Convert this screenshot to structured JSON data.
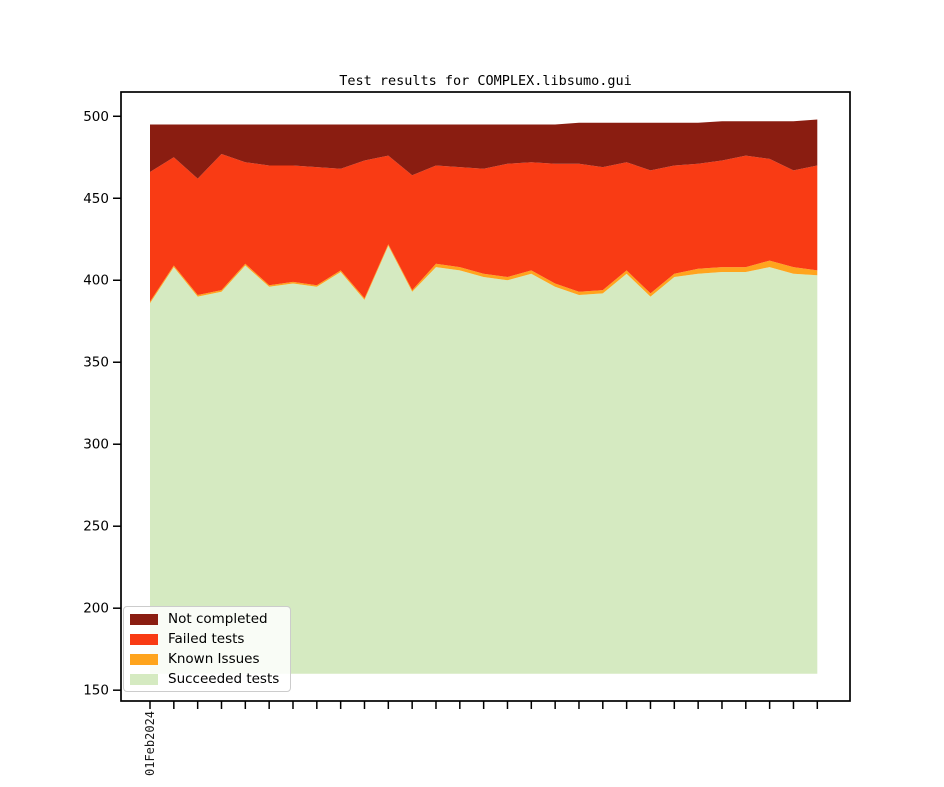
{
  "figure": {
    "title": "Test results for COMPLEX.libsumo.gui"
  },
  "chart_data": {
    "type": "area",
    "stacked": true,
    "title": "Test results for COMPLEX.libsumo.gui",
    "xlabel": "",
    "ylabel": "",
    "grid": false,
    "legend_position": "lower left",
    "x_tick_count": 29,
    "x_first_tick_label": "01Feb2024",
    "x_tick_labels": [
      "01Feb2024",
      "",
      "",
      "",
      "",
      "",
      "",
      "",
      "",
      "",
      "",
      "",
      "",
      "",
      "",
      "",
      "",
      "",
      "",
      "",
      "",
      "",
      "",
      "",
      "",
      "",
      "",
      "",
      ""
    ],
    "y_ticks": [
      150,
      200,
      250,
      300,
      350,
      400,
      450,
      500
    ],
    "ylim": [
      143.4,
      514.8
    ],
    "visible_stack_baseline": 160,
    "series": [
      {
        "name": "Succeeded tests",
        "color": "#d5eac1",
        "absolute": true,
        "values": [
          386,
          408,
          390,
          393,
          409,
          396,
          398,
          396,
          405,
          388,
          421,
          393,
          408,
          406,
          402,
          400,
          404,
          396,
          391,
          392,
          404,
          390,
          402,
          404,
          405,
          405,
          408,
          404,
          403
        ]
      },
      {
        "name": "Known Issues",
        "color": "#ffa41e",
        "absolute": false,
        "values": [
          1,
          1,
          1,
          1,
          1,
          1,
          1,
          1,
          1,
          1,
          1,
          1,
          2,
          2,
          2,
          2,
          2,
          2,
          2,
          2,
          2,
          2,
          2,
          3,
          3,
          3,
          4,
          4,
          3
        ]
      },
      {
        "name": "Failed tests",
        "color": "#f93b14",
        "absolute": false,
        "values": [
          79,
          66,
          71,
          83,
          62,
          73,
          71,
          72,
          62,
          84,
          54,
          70,
          60,
          61,
          64,
          69,
          66,
          73,
          78,
          75,
          66,
          75,
          66,
          64,
          65,
          68,
          62,
          59,
          64
        ]
      },
      {
        "name": "Not completed",
        "color": "#8a1d11",
        "absolute": false,
        "values": [
          29,
          20,
          33,
          18,
          23,
          25,
          25,
          26,
          27,
          22,
          19,
          31,
          25,
          26,
          27,
          24,
          23,
          24,
          25,
          27,
          24,
          29,
          26,
          25,
          24,
          21,
          23,
          30,
          28
        ]
      }
    ],
    "legend": [
      {
        "label": "Not completed",
        "color": "#8a1d11"
      },
      {
        "label": "Failed tests",
        "color": "#f93b14"
      },
      {
        "label": "Known Issues",
        "color": "#ffa41e"
      },
      {
        "label": "Succeeded tests",
        "color": "#d5eac1"
      }
    ],
    "axis_color": "#000000"
  }
}
